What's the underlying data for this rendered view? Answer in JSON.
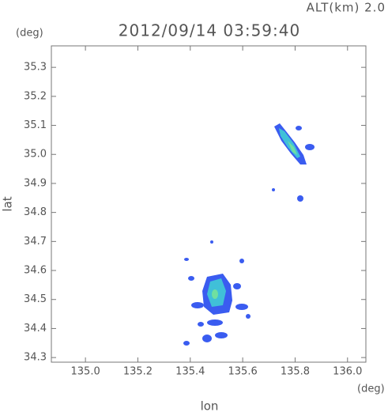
{
  "chart_data": {
    "type": "map",
    "title": "2012/09/14 03:59:40",
    "subtitle": "ALT(km) 2.0",
    "y_unit": "(deg)",
    "x_unit": "(deg)",
    "xlabel": "lon",
    "ylabel": "lat",
    "xlim": [
      134.87,
      136.07
    ],
    "ylim": [
      34.284,
      35.374
    ],
    "xticks": [
      {
        "value": 135,
        "label": "135.0"
      },
      135.2,
      135.4,
      135.6,
      135.8,
      {
        "value": 136,
        "label": "136.0"
      }
    ],
    "yticks": [
      34.3,
      34.4,
      34.5,
      34.6,
      34.7,
      34.8,
      34.9,
      {
        "value": 35,
        "label": "35.0"
      },
      35.1,
      35.2,
      35.3
    ]
  }
}
